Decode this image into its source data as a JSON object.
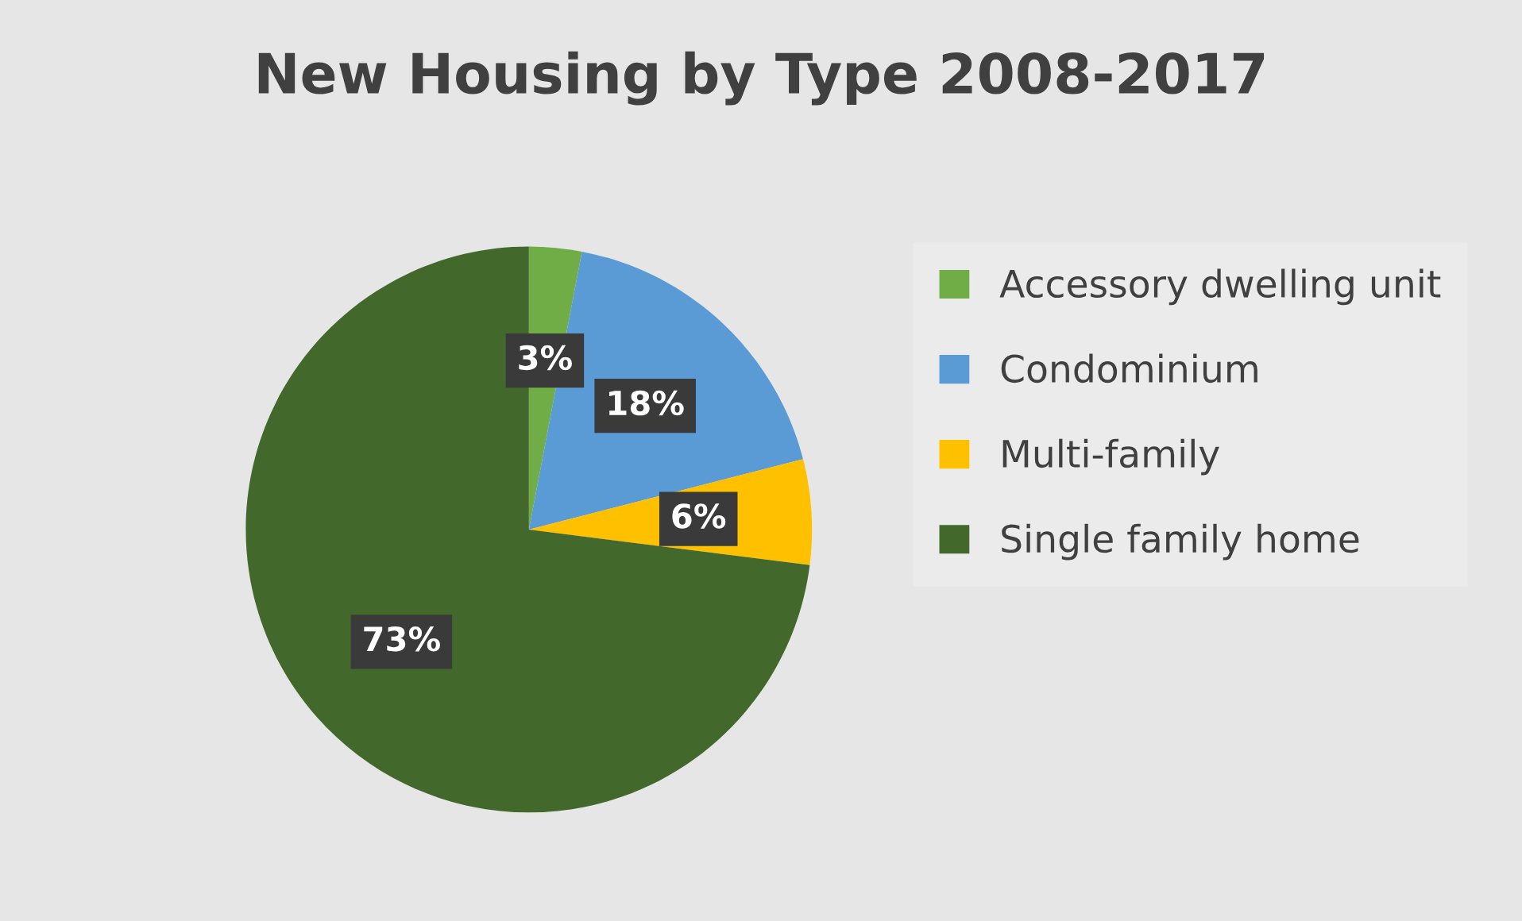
{
  "chart_data": {
    "type": "pie",
    "title": "New Housing by Type 2008-2017",
    "categories": [
      "Accessory dwelling unit",
      "Condominium",
      "Multi-family",
      "Single family home"
    ],
    "values": [
      3,
      18,
      6,
      73
    ],
    "colors": [
      "#70ad47",
      "#5b9bd5",
      "#ffc000",
      "#43682b"
    ],
    "value_labels": [
      "3%",
      "18%",
      "6%",
      "73%"
    ],
    "legend": "right"
  }
}
